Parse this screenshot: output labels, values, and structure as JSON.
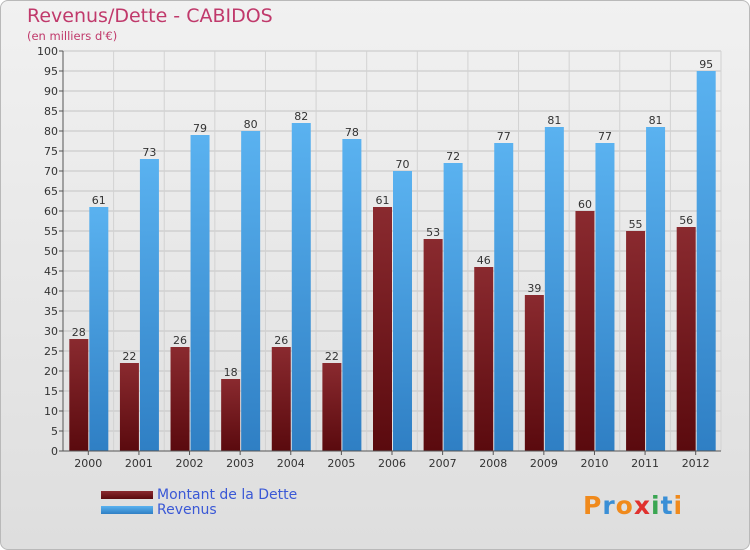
{
  "header": {
    "title": "Revenus/Dette - CABIDOS",
    "subtitle": "(en milliers d'€)"
  },
  "legend": {
    "items": [
      {
        "label": "Montant de la Dette",
        "color": "#7a1a1f"
      },
      {
        "label": "Revenus",
        "color": "#4aa3e8"
      }
    ]
  },
  "logo": {
    "text": "Proxiti",
    "letter_colors": [
      "#f08a1c",
      "#3a8fd6",
      "#f08a1c",
      "#e0312e",
      "#3aa652",
      "#3a8fd6",
      "#f08a1c"
    ]
  },
  "chart_data": {
    "type": "bar",
    "categories": [
      "2000",
      "2001",
      "2002",
      "2003",
      "2004",
      "2005",
      "2006",
      "2007",
      "2008",
      "2009",
      "2010",
      "2011",
      "2012"
    ],
    "series": [
      {
        "name": "Montant de la Dette",
        "color": "#7a1a1f",
        "values": [
          28,
          22,
          26,
          18,
          26,
          22,
          61,
          53,
          46,
          39,
          60,
          55,
          56
        ]
      },
      {
        "name": "Revenus",
        "color": "#4aa3e8",
        "values": [
          61,
          73,
          79,
          80,
          82,
          78,
          70,
          72,
          77,
          81,
          77,
          81,
          95
        ]
      }
    ],
    "title": "Revenus/Dette - CABIDOS",
    "subtitle": "(en milliers d'€)",
    "ylim": [
      0,
      100
    ],
    "ytick_step": 5,
    "grid": true,
    "legend_position": "bottom-left"
  }
}
